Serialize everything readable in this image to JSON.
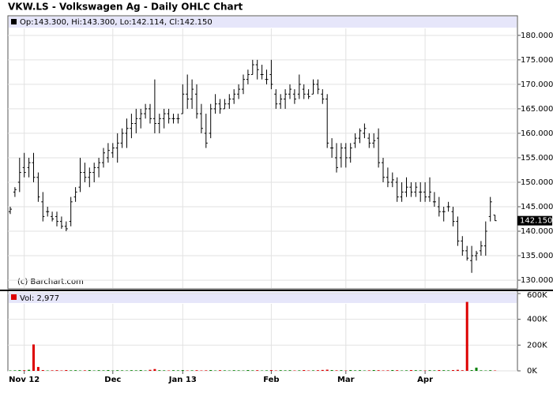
{
  "chart_data": {
    "type": "ohlc",
    "title": "VKW.LS - Volkswagen Ag - Daily OHLC Chart",
    "legend": "Op:143.300, Hi:143.300, Lo:142.114, Cl:142.150",
    "credit": "(c) Barchart.com",
    "categories": [
      null,
      null,
      null,
      "Nov 12",
      null,
      null,
      null,
      null,
      null,
      null,
      null,
      null,
      null,
      null,
      null,
      null,
      null,
      null,
      null,
      null,
      null,
      null,
      "Dec",
      null,
      null,
      null,
      null,
      null,
      null,
      null,
      null,
      null,
      null,
      null,
      null,
      null,
      null,
      "Jan 13",
      null,
      null,
      null,
      null,
      null,
      null,
      null,
      null,
      null,
      null,
      null,
      null,
      null,
      null,
      null,
      null,
      null,
      null,
      "Feb",
      null,
      null,
      null,
      null,
      null,
      null,
      null,
      null,
      null,
      null,
      null,
      null,
      null,
      null,
      null,
      "Mar",
      null,
      null,
      null,
      null,
      null,
      null,
      null,
      null,
      null,
      null,
      null,
      null,
      null,
      null,
      null,
      null,
      "Apr",
      null,
      null,
      null,
      null,
      null,
      null,
      null,
      null,
      null,
      null,
      null,
      null,
      null,
      null,
      null
    ],
    "ohlc": {
      "color": "#000000",
      "open": [
        144,
        148,
        150,
        153,
        153,
        154,
        151,
        146,
        144,
        143,
        143,
        142,
        141,
        142,
        147,
        149,
        152,
        151,
        152,
        153,
        154,
        155,
        156,
        157,
        158,
        160,
        161,
        162,
        163,
        164,
        165,
        163,
        162,
        163,
        164,
        163,
        163,
        164,
        168,
        167,
        168,
        164,
        160,
        160,
        165,
        166,
        165,
        166,
        167,
        168,
        169,
        171,
        172,
        174,
        172,
        171,
        172,
        168,
        166,
        167,
        168,
        168,
        168,
        169,
        168,
        168,
        170,
        168,
        167,
        157,
        155,
        155,
        157,
        155,
        158,
        159,
        160,
        159,
        158,
        159,
        154,
        151,
        150,
        150,
        147,
        148,
        149,
        148,
        148,
        148,
        147,
        146,
        145,
        144,
        145,
        144,
        142,
        138,
        136,
        134,
        135,
        136,
        137,
        143,
        143.3
      ],
      "high": [
        145,
        149,
        155,
        156,
        155,
        156,
        152,
        148,
        145,
        144,
        144,
        143,
        142,
        147,
        149,
        155,
        154,
        153,
        154,
        155,
        157,
        158,
        158,
        160,
        161,
        163,
        164,
        165,
        165,
        166,
        166,
        171,
        164,
        165,
        165,
        164,
        164,
        170,
        172,
        171,
        170,
        166,
        164,
        166,
        168,
        167,
        167,
        168,
        169,
        170,
        172,
        173,
        175,
        175,
        174,
        173,
        175,
        169,
        168,
        169,
        170,
        169,
        172,
        170,
        169,
        171,
        171,
        169,
        168,
        159,
        158,
        158,
        158,
        158,
        160,
        161,
        162,
        160,
        160,
        161,
        155,
        153,
        152,
        151,
        150,
        151,
        150,
        150,
        150,
        150,
        151,
        148,
        147,
        145,
        146,
        145,
        143,
        139,
        137,
        137,
        136,
        138,
        142,
        147,
        143.3
      ],
      "low": [
        143.5,
        147,
        148,
        151,
        151,
        150,
        146,
        142,
        143,
        142,
        141,
        140.5,
        140,
        141,
        146,
        148,
        150,
        149,
        150,
        151,
        153,
        154,
        155,
        154,
        157,
        157,
        159,
        160,
        161,
        163,
        162,
        160,
        160,
        161,
        162,
        162,
        162,
        164,
        165,
        165,
        163,
        160,
        157,
        159,
        164,
        164,
        165,
        165,
        166,
        167,
        168,
        170,
        172,
        171,
        171,
        170,
        169,
        165,
        165,
        165,
        167,
        166,
        167,
        167,
        167,
        168,
        168,
        166,
        157,
        155,
        152,
        153,
        153,
        154,
        157,
        158,
        159,
        157,
        157,
        153,
        150,
        149,
        149,
        146,
        146,
        147,
        147,
        147,
        146,
        146,
        146,
        145,
        143,
        142,
        144,
        141,
        137,
        135,
        134,
        131.5,
        134,
        135,
        135,
        142,
        142.114
      ],
      "close": [
        144.5,
        148.5,
        152,
        152,
        154,
        151,
        147,
        143,
        144,
        142.5,
        142,
        141,
        140.5,
        146,
        148,
        152,
        151,
        152,
        153,
        154,
        156,
        156.5,
        157,
        158,
        160,
        161,
        162,
        163,
        164,
        165,
        163,
        162,
        163,
        164,
        163,
        163,
        163,
        168,
        167,
        169,
        164,
        161,
        158,
        165,
        166,
        165,
        166,
        167,
        168,
        169,
        171,
        172,
        174,
        173,
        172,
        171,
        170,
        166,
        167,
        168,
        169,
        167,
        170,
        168,
        167.5,
        170,
        169,
        167,
        158,
        157,
        153,
        157,
        155,
        157,
        159,
        160.5,
        161,
        158,
        158.5,
        154,
        151,
        150,
        150.5,
        147,
        148,
        149,
        148,
        149,
        148,
        147,
        148,
        146,
        144,
        144,
        145,
        142,
        138,
        136,
        134.5,
        135,
        135.5,
        137,
        140,
        146,
        142.15
      ],
      "ylim": [
        128.4,
        181.1
      ],
      "yticks": [
        {
          "value": 130,
          "label": "130.000"
        },
        {
          "value": 135,
          "label": "135.000"
        },
        {
          "value": 140,
          "label": "140.000"
        },
        {
          "value": 145,
          "label": "145.000"
        },
        {
          "value": 150,
          "label": "150.000"
        },
        {
          "value": 155,
          "label": "155.000"
        },
        {
          "value": 160,
          "label": "160.000"
        },
        {
          "value": 165,
          "label": "165.000"
        },
        {
          "value": 170,
          "label": "170.000"
        },
        {
          "value": 175,
          "label": "175.000"
        },
        {
          "value": 180,
          "label": "180.000"
        }
      ],
      "last_tag": {
        "value": 142.15,
        "label": "142.150"
      }
    },
    "volume": {
      "legend": "Vol: 2,977",
      "up_color": "#008000",
      "down_color": "#dd0000",
      "values": [
        3000,
        4000,
        6000,
        5000,
        8000,
        205000,
        30000,
        6000,
        3000,
        4000,
        5000,
        3000,
        6000,
        4000,
        5000,
        3000,
        4000,
        6000,
        3000,
        5000,
        4000,
        6000,
        3000,
        5000,
        4000,
        3000,
        5000,
        4000,
        6000,
        3000,
        8000,
        14000,
        5000,
        4000,
        3000,
        5000,
        4000,
        6000,
        3000,
        4000,
        5000,
        3000,
        4000,
        6000,
        3000,
        5000,
        4000,
        3000,
        5000,
        4000,
        3000,
        6000,
        4000,
        5000,
        3000,
        4000,
        6000,
        3000,
        5000,
        4000,
        5000,
        3000,
        4000,
        6000,
        3000,
        4000,
        5000,
        7000,
        9000,
        6000,
        4000,
        5000,
        3000,
        6000,
        4000,
        5000,
        3000,
        4000,
        6000,
        5000,
        3000,
        4000,
        6000,
        5000,
        3000,
        4000,
        6000,
        5000,
        4000,
        3000,
        5000,
        4000,
        6000,
        5000,
        4000,
        6000,
        8000,
        5000,
        535000,
        6000,
        25000,
        4000,
        3000,
        5000,
        2977
      ],
      "ylim": [
        0,
        600000
      ],
      "yticks": [
        {
          "value": 0,
          "label": "0K"
        },
        {
          "value": 200000,
          "label": "200K"
        },
        {
          "value": 400000,
          "label": "400K"
        },
        {
          "value": 600000,
          "label": "600K"
        }
      ]
    },
    "grid": true
  }
}
